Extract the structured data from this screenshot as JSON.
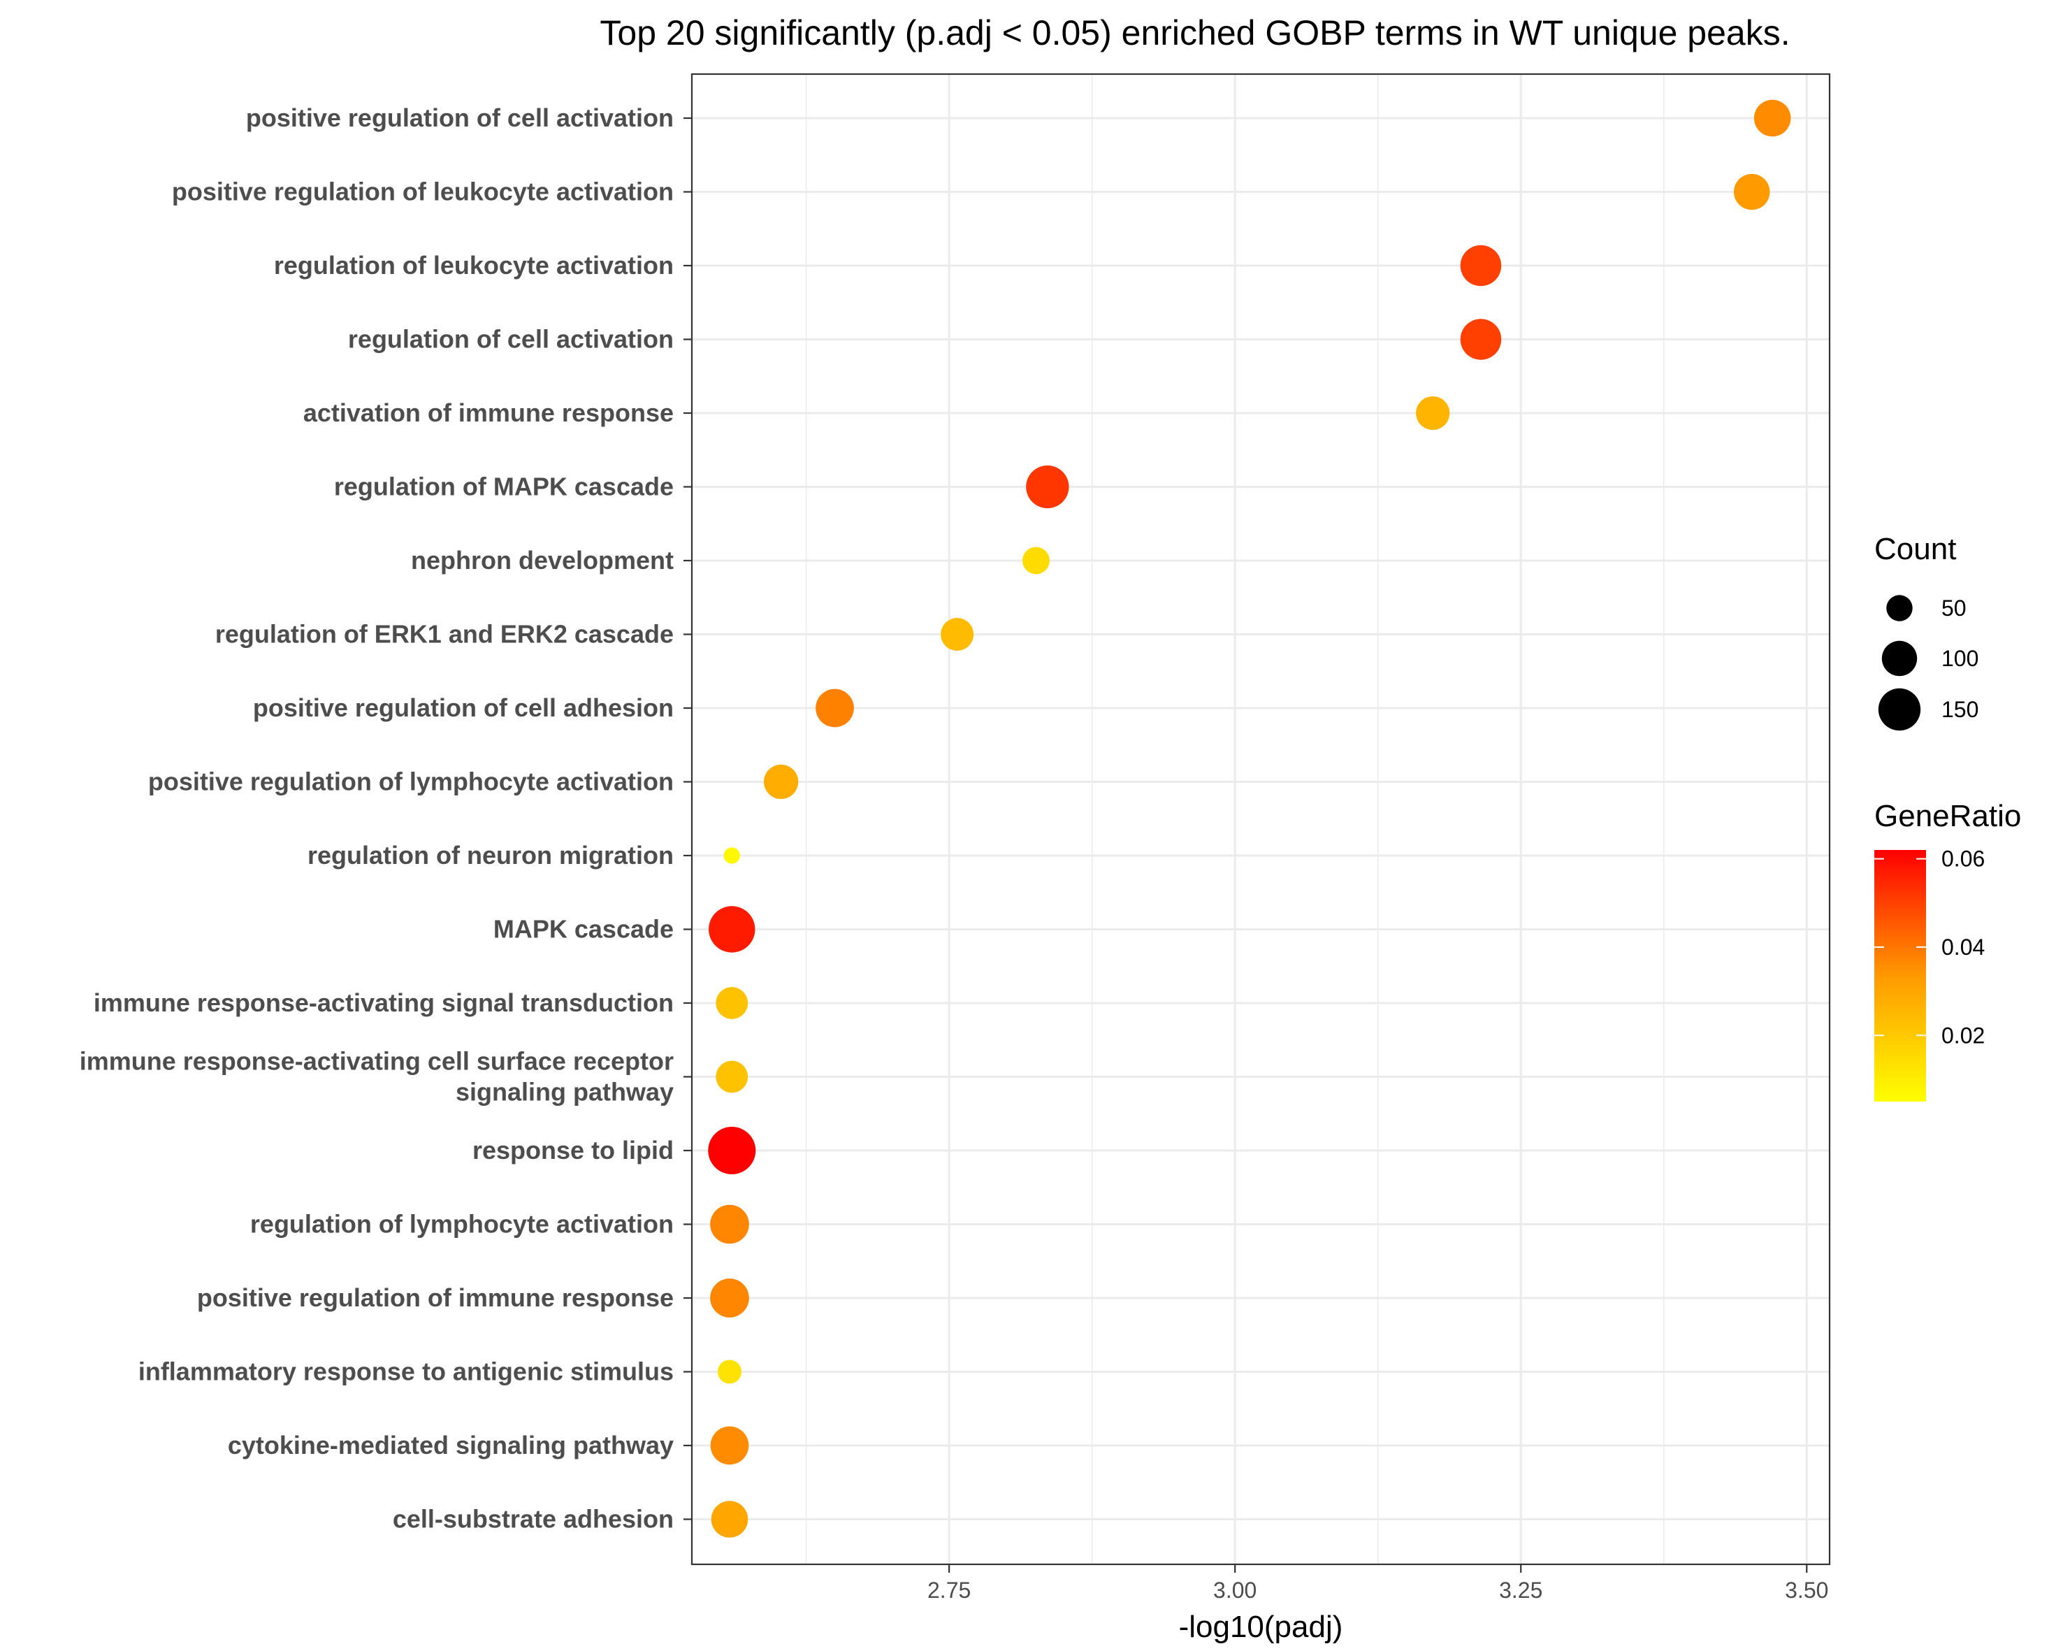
{
  "chart_data": {
    "type": "scatter",
    "title": "Top 20 significantly (p.adj < 0.05) enriched GOBP terms in WT unique peaks.",
    "xlabel": "-log10(padj)",
    "ylabel": "",
    "xlim": [
      2.525,
      3.52
    ],
    "xticks": [
      2.75,
      3.0,
      3.25,
      3.5
    ],
    "xtick_labels": [
      "2.75",
      "3.00",
      "3.25",
      "3.50"
    ],
    "grid": true,
    "categories": [
      [
        "positive regulation of cell activation"
      ],
      [
        "positive regulation of leukocyte activation"
      ],
      [
        "regulation of leukocyte activation"
      ],
      [
        "regulation of cell activation"
      ],
      [
        "activation of immune response"
      ],
      [
        "regulation of MAPK cascade"
      ],
      [
        "nephron development"
      ],
      [
        "regulation of ERK1 and ERK2 cascade"
      ],
      [
        "positive regulation of cell adhesion"
      ],
      [
        "positive regulation of lymphocyte activation"
      ],
      [
        "regulation of neuron migration"
      ],
      [
        "MAPK cascade"
      ],
      [
        "immune response-activating signal transduction"
      ],
      [
        "immune response-activating cell surface receptor",
        "signaling pathway"
      ],
      [
        "response to lipid"
      ],
      [
        "regulation of lymphocyte activation"
      ],
      [
        "positive regulation of immune response"
      ],
      [
        "inflammatory response to antigenic stimulus"
      ],
      [
        "cytokine-mediated signaling pathway"
      ],
      [
        "cell-substrate adhesion"
      ]
    ],
    "points": [
      {
        "x": 3.47,
        "count": 110,
        "gene_ratio": 0.036
      },
      {
        "x": 3.452,
        "count": 105,
        "gene_ratio": 0.033
      },
      {
        "x": 3.215,
        "count": 140,
        "gene_ratio": 0.05
      },
      {
        "x": 3.215,
        "count": 140,
        "gene_ratio": 0.05
      },
      {
        "x": 3.173,
        "count": 90,
        "gene_ratio": 0.026
      },
      {
        "x": 2.836,
        "count": 155,
        "gene_ratio": 0.052
      },
      {
        "x": 2.826,
        "count": 55,
        "gene_ratio": 0.015
      },
      {
        "x": 2.757,
        "count": 85,
        "gene_ratio": 0.024
      },
      {
        "x": 2.65,
        "count": 120,
        "gene_ratio": 0.038
      },
      {
        "x": 2.603,
        "count": 95,
        "gene_ratio": 0.028
      },
      {
        "x": 2.56,
        "count": 15,
        "gene_ratio": 0.007
      },
      {
        "x": 2.56,
        "count": 185,
        "gene_ratio": 0.057
      },
      {
        "x": 2.56,
        "count": 80,
        "gene_ratio": 0.022
      },
      {
        "x": 2.56,
        "count": 80,
        "gene_ratio": 0.022
      },
      {
        "x": 2.56,
        "count": 195,
        "gene_ratio": 0.062
      },
      {
        "x": 2.558,
        "count": 125,
        "gene_ratio": 0.037
      },
      {
        "x": 2.558,
        "count": 125,
        "gene_ratio": 0.037
      },
      {
        "x": 2.558,
        "count": 40,
        "gene_ratio": 0.013
      },
      {
        "x": 2.558,
        "count": 120,
        "gene_ratio": 0.036
      },
      {
        "x": 2.558,
        "count": 110,
        "gene_ratio": 0.03
      }
    ],
    "size_legend": {
      "title": "Count",
      "values": [
        50,
        100,
        150
      ],
      "labels": [
        "50",
        "100",
        "150"
      ]
    },
    "color_legend": {
      "title": "GeneRatio",
      "range": [
        0.005,
        0.062
      ],
      "values": [
        0.02,
        0.04,
        0.06
      ],
      "labels": [
        "0.02",
        "0.04",
        "0.06"
      ],
      "low_color": "#FFFF00",
      "high_color": "#FF0000"
    },
    "colors": {
      "panel_border": "#333333",
      "grid": "#ebebeb",
      "tick": "#333333"
    }
  }
}
